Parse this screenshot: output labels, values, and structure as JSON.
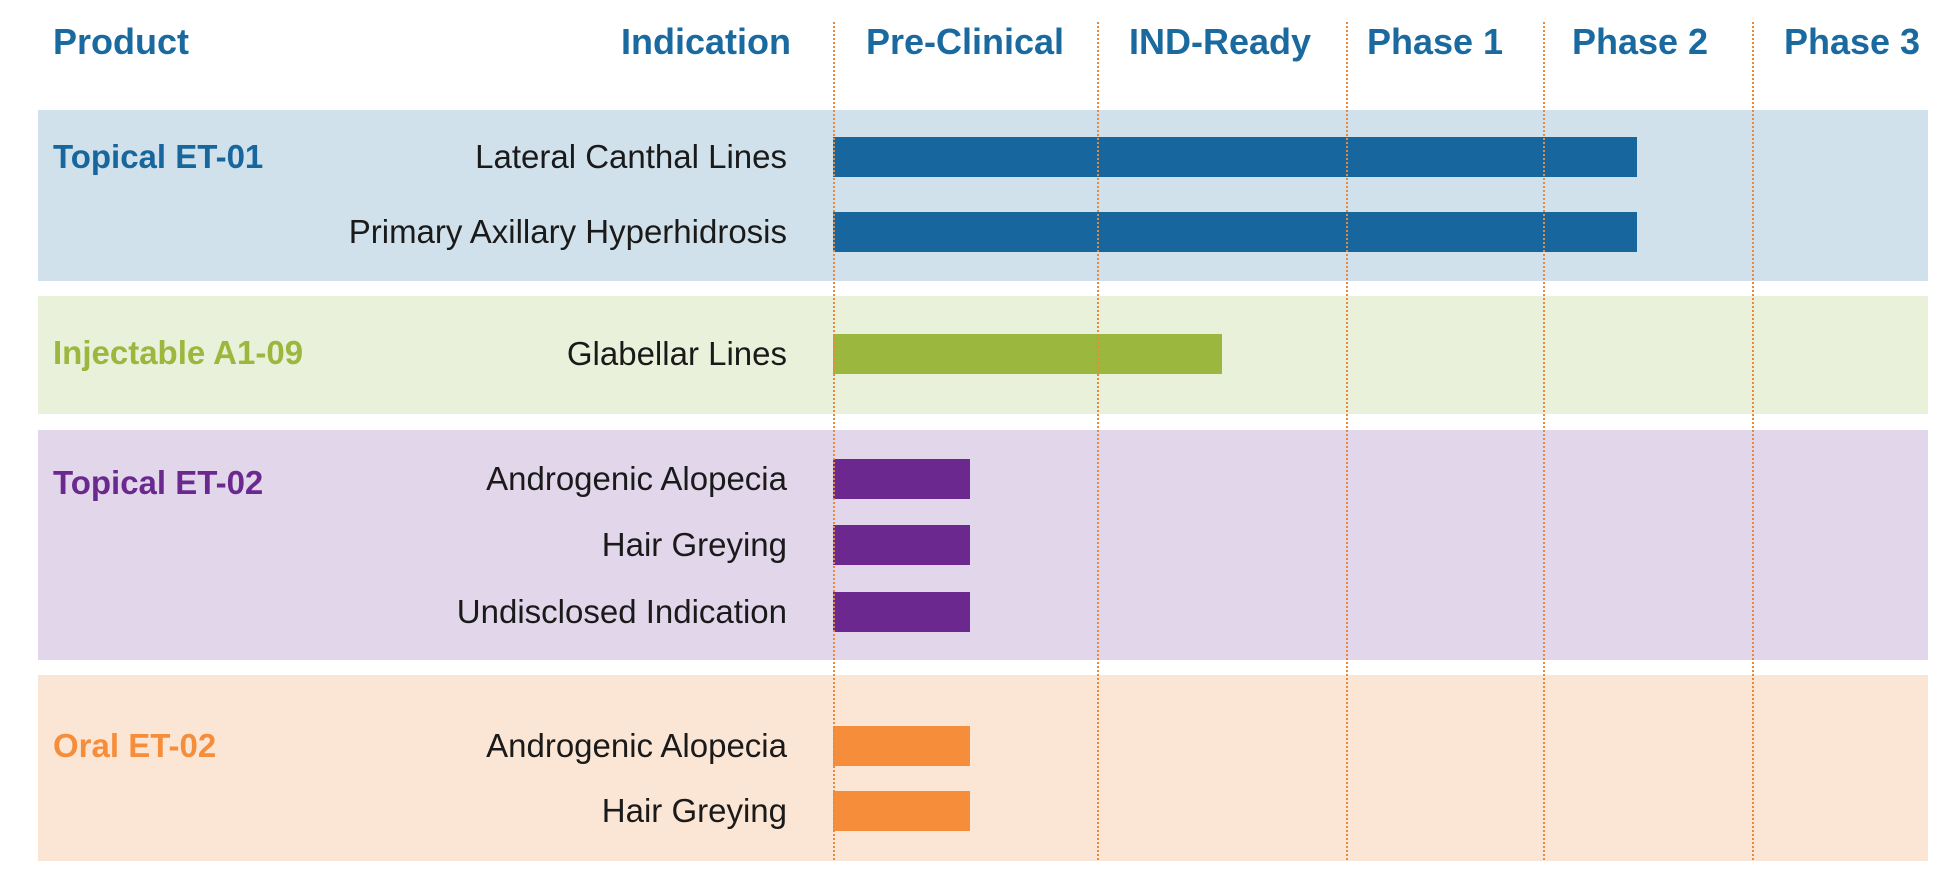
{
  "header": {
    "product": "Product",
    "indication": "Indication"
  },
  "chart_data": {
    "type": "bar",
    "stages": [
      "Pre-Clinical",
      "IND-Ready",
      "Phase 1",
      "Phase 2",
      "Phase 3"
    ],
    "groups": [
      {
        "product": "Topical ET-01",
        "color": "#17669d",
        "band_color": "#d0e1eb",
        "rows": [
          {
            "indication": "Lateral Canthal Lines",
            "progress": 3.45
          },
          {
            "indication": "Primary Axillary Hyperhidrosis",
            "progress": 3.45
          }
        ]
      },
      {
        "product": "Injectable A1-09",
        "color": "#9cb73d",
        "band_color": "#eaf1da",
        "rows": [
          {
            "indication": "Glabellar Lines",
            "progress": 1.5
          }
        ]
      },
      {
        "product": "Topical ET-02",
        "color": "#6b298f",
        "band_color": "#e1d6ea",
        "rows": [
          {
            "indication": "Androgenic Alopecia",
            "progress": 0.52
          },
          {
            "indication": "Hair Greying",
            "progress": 0.52
          },
          {
            "indication": "Undisclosed Indication",
            "progress": 0.52
          }
        ]
      },
      {
        "product": "Oral ET-02",
        "color": "#f68d3a",
        "band_color": "#fbe6d5",
        "rows": [
          {
            "indication": "Androgenic Alopecia",
            "progress": 0.52
          },
          {
            "indication": "Hair Greying",
            "progress": 0.52
          }
        ]
      }
    ]
  }
}
